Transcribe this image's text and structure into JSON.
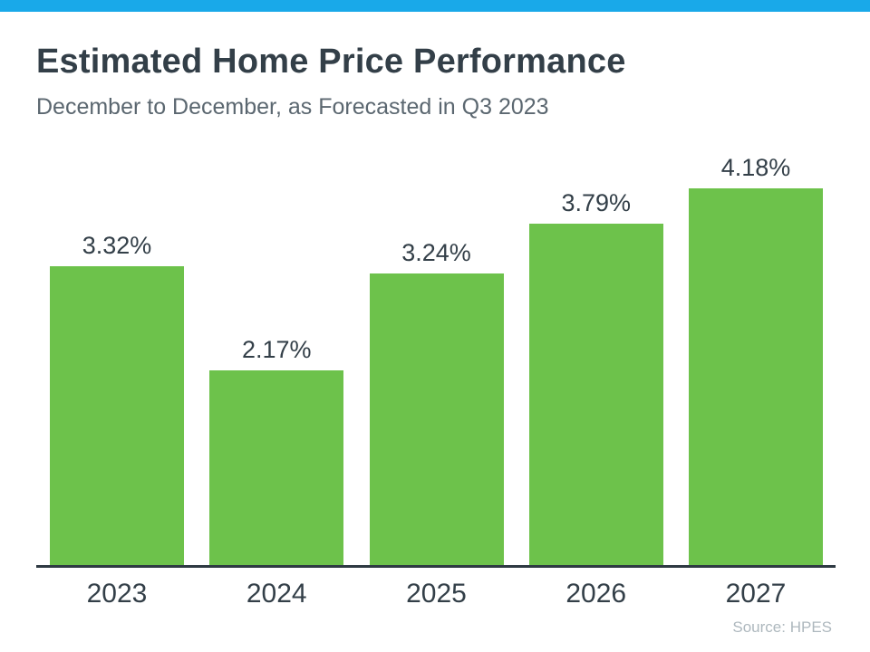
{
  "page": {
    "topbar_color": "#19a9e9",
    "background_color": "#ffffff"
  },
  "header": {
    "title": "Estimated Home Price Performance",
    "subtitle": "December to December, as Forecasted in Q3 2023"
  },
  "footer": {
    "source": "Source: HPES"
  },
  "chart_data": {
    "type": "bar",
    "title": "Estimated Home Price Performance",
    "subtitle": "December to December, as Forecasted in Q3 2023",
    "categories": [
      "2023",
      "2024",
      "2025",
      "2026",
      "2027"
    ],
    "values": [
      3.32,
      2.17,
      3.24,
      3.79,
      4.18
    ],
    "value_labels": [
      "3.32%",
      "2.17%",
      "3.24%",
      "3.79%",
      "4.18%"
    ],
    "unit": "percent",
    "ylim": [
      0,
      4.66
    ],
    "grid": false,
    "legend": false,
    "y_axis_visible": false,
    "bar_color": "#6dc24b",
    "value_label_color": "#333f48",
    "x_label_color": "#333f48",
    "axis_line_color": "#2e3942",
    "source": "Source: HPES"
  }
}
